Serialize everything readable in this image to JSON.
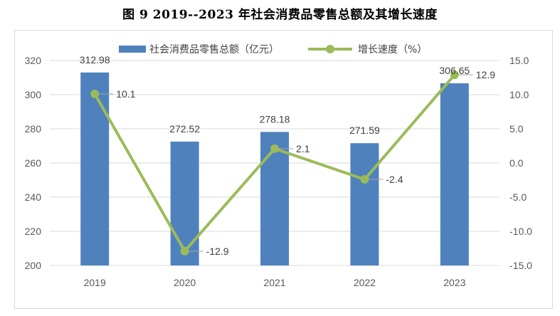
{
  "title": "图 9    2019--2023 年社会消费品零售总额及其增长速度",
  "chart_data": {
    "type": "bar",
    "categories": [
      "2019",
      "2020",
      "2021",
      "2022",
      "2023"
    ],
    "series": [
      {
        "name": "社会消费品零售总额（亿元）",
        "type": "bar",
        "axis": "left",
        "values": [
          312.98,
          272.52,
          278.18,
          271.59,
          306.65
        ],
        "labels": [
          "312.98",
          "272.52",
          "278.18",
          "271.59",
          "306.65"
        ],
        "color": "#4f81bd"
      },
      {
        "name": "增长速度（%）",
        "type": "line",
        "axis": "right",
        "values": [
          10.1,
          -12.9,
          2.1,
          -2.4,
          12.9
        ],
        "labels": [
          "10.1",
          "-12.9",
          "2.1",
          "-2.4",
          "12.9"
        ],
        "color": "#9bbb59"
      }
    ],
    "y_left": {
      "min": 200,
      "max": 320,
      "step": 20,
      "ticks": [
        "200",
        "220",
        "240",
        "260",
        "280",
        "300",
        "320"
      ]
    },
    "y_right": {
      "min": -15,
      "max": 15,
      "step": 5,
      "ticks": [
        "-15.0",
        "-10.0",
        "-5.0",
        "0.0",
        "5.0",
        "10.0",
        "15.0"
      ]
    },
    "grid": true,
    "legend_position": "top"
  }
}
